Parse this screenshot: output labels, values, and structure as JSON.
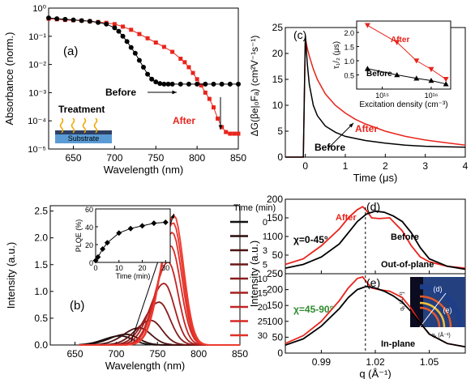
{
  "colors": {
    "before": "#000000",
    "after": "#e8241c",
    "green": "#2e8b2e",
    "substrate": "#5b9bd5",
    "film": "#2f3f63",
    "wave": "#f0a800"
  },
  "chart_data": [
    {
      "panel": "(a)",
      "type": "scatter",
      "xlabel": "Wavelength (nm)",
      "ylabel": "Absorbance (norm.)",
      "xlim": [
        620,
        850
      ],
      "ylim": [
        1e-05,
        1
      ],
      "yscale": "log",
      "xticks": [
        "650",
        "700",
        "750",
        "800",
        "850"
      ],
      "yticks": [
        "10⁻⁵",
        "10⁻⁴",
        "10⁻³",
        "10⁻²",
        "10⁻¹",
        "10⁰"
      ],
      "annotations": [
        "Treatment",
        "Substrate",
        "Before",
        "After"
      ],
      "series": [
        {
          "name": "Before",
          "x": [
            620,
            630,
            640,
            650,
            660,
            670,
            680,
            690,
            700,
            705,
            710,
            715,
            720,
            725,
            730,
            735,
            740,
            745,
            750,
            755,
            760,
            765,
            770,
            780,
            790,
            800,
            810,
            820,
            830,
            840,
            850
          ],
          "y": [
            0.45,
            0.42,
            0.4,
            0.38,
            0.36,
            0.34,
            0.31,
            0.27,
            0.2,
            0.15,
            0.1,
            0.065,
            0.04,
            0.025,
            0.014,
            0.008,
            0.0045,
            0.003,
            0.0024,
            0.0021,
            0.002,
            0.002,
            0.002,
            0.002,
            0.002,
            0.002,
            0.002,
            0.002,
            0.002,
            0.002,
            0.002
          ]
        },
        {
          "name": "After",
          "x": [
            620,
            630,
            640,
            650,
            660,
            670,
            680,
            690,
            700,
            710,
            720,
            730,
            740,
            750,
            760,
            770,
            780,
            785,
            790,
            795,
            800,
            805,
            810,
            815,
            820,
            825,
            830,
            835,
            840,
            845,
            850
          ],
          "y": [
            0.42,
            0.4,
            0.38,
            0.37,
            0.36,
            0.34,
            0.32,
            0.3,
            0.27,
            0.22,
            0.17,
            0.12,
            0.085,
            0.06,
            0.042,
            0.028,
            0.016,
            0.012,
            0.008,
            0.005,
            0.003,
            0.0018,
            0.001,
            0.0006,
            0.0003,
            0.00012,
            6e-05,
            4e-05,
            3.5e-05,
            3.5e-05,
            3.5e-05
          ]
        }
      ]
    },
    {
      "panel": "(c)",
      "type": "line",
      "xlabel": "Time (μs)",
      "ylabel": "ΔG(βe|₀Fₐ) (cm²V⁻¹s⁻¹)",
      "xlim": [
        -0.5,
        4
      ],
      "ylim": [
        0,
        25
      ],
      "xticks": [
        "0",
        "1",
        "2",
        "3",
        "4"
      ],
      "yticks": [
        "0",
        "5",
        "10",
        "15",
        "20",
        "25"
      ],
      "series": [
        {
          "name": "After",
          "x": [
            -0.5,
            -0.05,
            0,
            0.05,
            0.1,
            0.2,
            0.3,
            0.5,
            0.75,
            1,
            1.25,
            1.5,
            2,
            2.5,
            3,
            3.5,
            4
          ],
          "y": [
            0,
            0,
            23,
            21,
            19.5,
            17,
            15,
            12.2,
            10,
            8.5,
            7.3,
            6.4,
            5,
            4,
            3.3,
            2.8,
            2.3
          ]
        },
        {
          "name": "Before",
          "x": [
            -0.5,
            -0.05,
            0,
            0.05,
            0.1,
            0.2,
            0.3,
            0.5,
            0.75,
            1,
            1.5,
            2,
            2.5,
            3,
            3.5,
            4
          ],
          "y": [
            0,
            0,
            23.5,
            18,
            14,
            10,
            8,
            6,
            4.8,
            4,
            3.2,
            2.7,
            2.3,
            2.1,
            2,
            1.9
          ]
        }
      ]
    },
    {
      "panel": "(c) inset",
      "type": "line",
      "xlabel": "Excitation density (cm⁻³)",
      "ylabel": "τ₁/₂ (μs)",
      "xlim": [
        300000000000000.0,
        2.5e+16
      ],
      "ylim": [
        0,
        2.4
      ],
      "xscale": "log",
      "xticks": [
        "10¹⁵",
        "10¹⁶"
      ],
      "yticks": [
        "0.5",
        "1.0",
        "1.5",
        "2.0"
      ],
      "series": [
        {
          "name": "After",
          "x": [
            500000000000000.0,
            2000000000000000.0,
            5000000000000000.0,
            1e+16,
            2e+16
          ],
          "y": [
            2.25,
            1.65,
            1.0,
            0.7,
            0.35
          ]
        },
        {
          "name": "Before",
          "x": [
            500000000000000.0,
            2000000000000000.0,
            5000000000000000.0,
            1e+16,
            2e+16
          ],
          "y": [
            0.72,
            0.5,
            0.38,
            0.3,
            0.18
          ]
        }
      ]
    },
    {
      "panel": "(b)",
      "type": "line",
      "xlabel": "Wavelength (nm)",
      "ylabel": "Intensity (a.u.)",
      "xlim": [
        620,
        850
      ],
      "ylim": [
        0,
        2.6
      ],
      "xticks": [
        "650",
        "700",
        "750",
        "800",
        "850"
      ],
      "yticks": [
        "0.0",
        "0.5",
        "1.0",
        "1.5",
        "2.0",
        "2.5"
      ],
      "legend_title": "Time (min)",
      "series": [
        {
          "name": "0",
          "peak": 705,
          "amp": 0.17,
          "width": 28
        },
        {
          "name": "1",
          "peak": 712,
          "amp": 0.2,
          "width": 28
        },
        {
          "name": "3",
          "peak": 728,
          "amp": 0.32,
          "width": 27
        },
        {
          "name": "5",
          "peak": 742,
          "amp": 0.46,
          "width": 26
        },
        {
          "name": "10",
          "peak": 752,
          "amp": 0.8,
          "width": 25
        },
        {
          "name": "15",
          "peak": 758,
          "amp": 1.15,
          "width": 24
        },
        {
          "name": "20",
          "peak": 763,
          "amp": 1.55,
          "width": 23
        },
        {
          "name": "25",
          "peak": 766,
          "amp": 1.85,
          "width": 23
        },
        {
          "name": "30",
          "peak": 768,
          "amp": 2.1,
          "width": 22
        },
        {
          "name": "",
          "peak": 769,
          "amp": 2.28,
          "width": 22
        },
        {
          "name": "",
          "peak": 770,
          "amp": 2.42,
          "width": 22
        }
      ]
    },
    {
      "panel": "(b) inset",
      "type": "line",
      "xlabel": "Time (min)",
      "ylabel": "PLQE (%)",
      "xlim": [
        0,
        32
      ],
      "ylim": [
        0,
        60
      ],
      "xticks": [
        "0",
        "10",
        "20",
        "30"
      ],
      "yticks": [
        "0",
        "20",
        "40",
        "60"
      ],
      "series": [
        {
          "name": "PLQE",
          "x": [
            0,
            1,
            3,
            5,
            10,
            15,
            20,
            25,
            30
          ],
          "y": [
            2,
            6,
            15,
            22,
            33,
            38,
            41,
            44,
            45
          ]
        }
      ]
    },
    {
      "panel": "(d)",
      "type": "line",
      "xlim": [
        0.97,
        1.07
      ],
      "ylim": [
        0,
        200
      ],
      "yticks": [
        "0",
        "50",
        "100",
        "150",
        "200"
      ],
      "annotations": [
        "After",
        "Before",
        "χ=0-45°",
        "Out-of-plane"
      ],
      "series": [
        {
          "name": "After",
          "x": [
            0.97,
            0.98,
            0.99,
            1.0,
            1.005,
            1.01,
            1.013,
            1.015,
            1.018,
            1.022,
            1.028,
            1.035,
            1.04,
            1.045,
            1.05,
            1.06,
            1.07
          ],
          "y": [
            25,
            40,
            75,
            120,
            150,
            172,
            180,
            170,
            150,
            148,
            150,
            115,
            75,
            45,
            32,
            20,
            15
          ]
        },
        {
          "name": "Before",
          "x": [
            0.97,
            0.98,
            0.99,
            1.0,
            1.005,
            1.01,
            1.015,
            1.02,
            1.025,
            1.03,
            1.035,
            1.04,
            1.045,
            1.05,
            1.06,
            1.07
          ],
          "y": [
            15,
            25,
            45,
            80,
            110,
            140,
            160,
            168,
            165,
            155,
            140,
            110,
            70,
            40,
            20,
            12
          ]
        }
      ]
    },
    {
      "panel": "(e)",
      "type": "line",
      "xlabel": "q (Å⁻¹)",
      "ylabel": "Intensity (a.u.)",
      "xlim": [
        0.97,
        1.07
      ],
      "ylim": [
        0,
        250
      ],
      "xticks": [
        "0.99",
        "1.02",
        "1.05"
      ],
      "yticks": [
        "0",
        "50",
        "100",
        "150",
        "200",
        "250"
      ],
      "annotations": [
        "χ=45-90°",
        "In-plane",
        "(d)",
        "(e)",
        "qₓ (Å⁻¹)",
        "qᵧ (Å⁻¹)"
      ],
      "series": [
        {
          "name": "After",
          "x": [
            0.97,
            0.98,
            0.99,
            1.0,
            1.005,
            1.01,
            1.013,
            1.015,
            1.018,
            1.022,
            1.028,
            1.035,
            1.04,
            1.045,
            1.05,
            1.06,
            1.07
          ],
          "y": [
            30,
            55,
            100,
            165,
            205,
            235,
            240,
            225,
            205,
            200,
            195,
            175,
            140,
            95,
            60,
            30,
            20
          ]
        },
        {
          "name": "Before",
          "x": [
            0.97,
            0.98,
            0.99,
            1.0,
            1.005,
            1.01,
            1.015,
            1.02,
            1.025,
            1.03,
            1.035,
            1.04,
            1.045,
            1.05,
            1.06,
            1.07
          ],
          "y": [
            25,
            45,
            85,
            140,
            175,
            200,
            210,
            205,
            195,
            180,
            160,
            130,
            95,
            60,
            30,
            20
          ]
        }
      ]
    }
  ]
}
